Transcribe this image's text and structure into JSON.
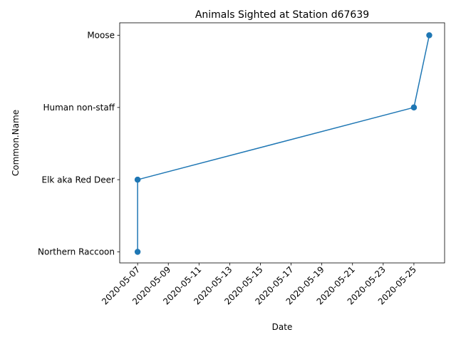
{
  "chart_data": {
    "type": "line",
    "title": "Animals Sighted at Station d67639",
    "xlabel": "Date",
    "ylabel": "Common.Name",
    "grid": false,
    "x_ticks": [
      "2020-05-07",
      "2020-05-09",
      "2020-05-11",
      "2020-05-13",
      "2020-05-15",
      "2020-05-17",
      "2020-05-19",
      "2020-05-21",
      "2020-05-23",
      "2020-05-25"
    ],
    "x_range": [
      "2020-05-05T20:00",
      "2020-05-27T00:00"
    ],
    "categories": [
      "Northern Raccoon",
      "Elk aka Red Deer",
      "Human non-staff",
      "Moose"
    ],
    "points": [
      {
        "x": "2020-05-07",
        "y": "Northern Raccoon"
      },
      {
        "x": "2020-05-07",
        "y": "Elk aka Red Deer"
      },
      {
        "x": "2020-05-07",
        "y": "Elk aka Red Deer"
      },
      {
        "x": "2020-05-25",
        "y": "Human non-staff"
      },
      {
        "x": "2020-05-25",
        "y": "Human non-staff"
      },
      {
        "x": "2020-05-26",
        "y": "Moose"
      }
    ],
    "color": "#1f77b4"
  }
}
